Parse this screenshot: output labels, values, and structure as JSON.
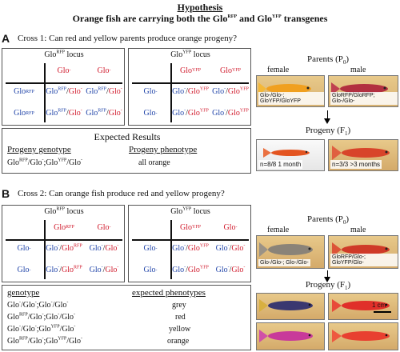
{
  "title": {
    "line1": "Hypothesis",
    "line2": "Orange fish are carrying both the Glo",
    "rfp": "RFP",
    "mid": " and Glo",
    "yfp": "YFP",
    "tail": " transgenes"
  },
  "panelA": {
    "letter": "A",
    "question": "Cross 1: Can red and yellow parents produce orange progeny?",
    "punnett1": {
      "locus": "Glo",
      "sup": "RFP",
      "locus_word": "locus",
      "cols": [
        "Glo-",
        "Glo-"
      ],
      "rows": [
        "Glo RFP",
        "Glo RFP"
      ],
      "cells": [
        "GloRFP/Glo-",
        "GloRFP/Glo-",
        "GloRFP/Glo-",
        "GloRFP/Glo-"
      ]
    },
    "punnett2": {
      "locus": "Glo",
      "sup": "YFP",
      "locus_word": "locus",
      "cols": [
        "GloYFP",
        "GloYFP"
      ],
      "rows": [
        "Glo-",
        "Glo-"
      ],
      "cells": [
        "Glo-/GloYFP",
        "Glo-/GloYFP",
        "Glo-/GloYFP",
        "Glo-/GloYFP"
      ]
    },
    "results": {
      "heading": "Expected Results",
      "col1": "Progeny genotype",
      "col2": "Progeny phenotype",
      "phenotype": "all orange"
    },
    "parents_label": "Parents (P",
    "parents_sub": "0",
    "female": "female",
    "male": "male",
    "female_caption": "Glo-/Glo-; GloYFP/GloYFP",
    "male_caption": "GloRFP/GloRFP; Glo-/Glo-",
    "progeny_label": "Progeny (F",
    "progeny_sub": "1",
    "prog1_caption": "n=8/8   1 month",
    "prog2_caption": "n=3/3   >3 months"
  },
  "panelB": {
    "letter": "B",
    "question": "Cross 2: Can orange fish produce red and yellow progeny?",
    "parents_label": "Parents (P",
    "parents_sub": "0",
    "female": "female",
    "male": "male",
    "female_caption": "Glo-/Glo-; Glo-/Glo-",
    "male_caption": "GloRFP/Glo-; GloYFP/Glo-",
    "progeny_label": "Progeny (F",
    "progeny_sub": "1",
    "scale": "1 cm",
    "table": {
      "col1": "genotype",
      "col2": "expected phenotypes",
      "rows": [
        {
          "pheno": "grey"
        },
        {
          "pheno": "red"
        },
        {
          "pheno": "yellow"
        },
        {
          "pheno": "orange"
        }
      ]
    }
  },
  "colors": {
    "red": "#d0182a",
    "blue": "#1f43a8"
  }
}
